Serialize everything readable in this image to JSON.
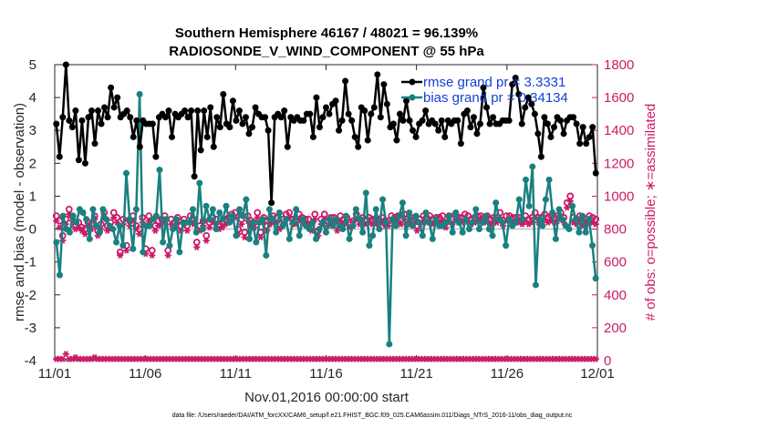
{
  "chart_data": {
    "type": "line",
    "title_line1": "Southern Hemisphere 46167 / 48021 = 96.139%",
    "title_line2": "RADIOSONDE_V_WIND_COMPONENT @ 55 hPa",
    "xlabel": "Nov.01,2016 00:00:00 start",
    "ylabel": "rmse and bias (model - observation)",
    "ylabel_right": "# of obs: o=possible; ∗=assimilated",
    "xlim": [
      0,
      30
    ],
    "ylim": [
      -4,
      5
    ],
    "ylim_right": [
      0,
      1800
    ],
    "x_tick_values": [
      0,
      5,
      10,
      15,
      20,
      25,
      30
    ],
    "x_tick_labels": [
      "11/01",
      "11/06",
      "11/11",
      "11/16",
      "11/21",
      "11/26",
      "12/01"
    ],
    "y_ticks": [
      "5",
      "4",
      "3",
      "2",
      "1",
      "0",
      "-1",
      "-2",
      "-3",
      "-4"
    ],
    "y_ticks_right": [
      "1800",
      "1600",
      "1400",
      "1200",
      "1000",
      "800",
      "600",
      "400",
      "200",
      "0"
    ],
    "zero_line": 0,
    "legend": {
      "rmse_label": "rmse grand pr = 3.3331",
      "bias_label": "bias grand pr = 0.34134",
      "position": "top-right"
    },
    "colors": {
      "rmse": "#000000",
      "bias": "#1a8080",
      "obs": "#cc1a66",
      "legend_text": "#1440d6",
      "zero_line": "#c0c0c0"
    },
    "series": [
      {
        "name": "rmse",
        "values": [
          3.2,
          2.2,
          3.4,
          5.0,
          3.3,
          3.1,
          3.6,
          2.1,
          3.3,
          2.0,
          3.4,
          3.6,
          2.6,
          3.6,
          3.2,
          3.7,
          3.4,
          4.3,
          3.7,
          4.0,
          3.4,
          3.5,
          3.6,
          3.4,
          2.8,
          3.3,
          2.5,
          3.3,
          3.2,
          3.2,
          3.2,
          2.2,
          3.4,
          3.5,
          3.4,
          3.6,
          2.8,
          3.5,
          3.4,
          3.5,
          3.6,
          3.4,
          3.6,
          1.6,
          3.6,
          2.4,
          3.6,
          2.8,
          3.7,
          2.5,
          3.4,
          3.1,
          4.1,
          3.2,
          3.1,
          3.9,
          3.3,
          3.6,
          3.2,
          3.4,
          2.9,
          3.1,
          3.7,
          3.5,
          3.4,
          3.4,
          3.0,
          0.8,
          3.4,
          3.5,
          3.4,
          3.6,
          2.5,
          3.4,
          3.3,
          3.4,
          3.3,
          3.3,
          3.5,
          3.5,
          2.8,
          4.0,
          3.1,
          3.4,
          3.7,
          3.5,
          3.8,
          3.9,
          3.0,
          3.3,
          4.5,
          3.5,
          3.3,
          2.8,
          2.5,
          3.7,
          3.6,
          2.7,
          3.5,
          3.7,
          4.7,
          3.4,
          4.4,
          3.8,
          3.1,
          3.2,
          2.7,
          3.5,
          3.3,
          3.9,
          3.3,
          3.0,
          2.8,
          3.2,
          3.3,
          3.6,
          3.2,
          3.3,
          3.2,
          3.0,
          3.3,
          2.8,
          3.3,
          3.2,
          3.3,
          3.3,
          2.6,
          3.5,
          3.6,
          3.1,
          3.4,
          2.9,
          3.2,
          4.3,
          3.7,
          3.2,
          3.4,
          3.2,
          3.2,
          3.3,
          3.3,
          3.3,
          4.4,
          4.6,
          4.1,
          3.2,
          3.7,
          4.0,
          3.8,
          3.5,
          2.9,
          2.2,
          3.4,
          3.2,
          2.8,
          3.1,
          3.4,
          3.3,
          2.9,
          3.3,
          3.4,
          3.4,
          3.2,
          2.6,
          3.1,
          2.6,
          2.8,
          3.1,
          1.7
        ]
      },
      {
        "name": "bias",
        "values": [
          -0.4,
          -1.4,
          0.4,
          0.0,
          -0.1,
          0.4,
          0.2,
          0.6,
          0.5,
          0.3,
          -0.3,
          0.6,
          0.1,
          -0.1,
          0.6,
          0.3,
          0.1,
          0.0,
          -0.4,
          0.1,
          -0.5,
          1.7,
          0.3,
          -0.6,
          0.6,
          4.1,
          -0.7,
          0.1,
          0.1,
          0.3,
          0.4,
          1.8,
          -0.4,
          0.3,
          -0.5,
          0.0,
          0.3,
          -0.7,
          0.2,
          0.2,
          0.2,
          0.6,
          -0.1,
          1.4,
          0.0,
          0.7,
          0.3,
          0.6,
          0.0,
          0.5,
          0.3,
          0.7,
          0.2,
          0.4,
          -0.2,
          0.6,
          0.4,
          0.9,
          -0.3,
          0.2,
          -0.4,
          0.2,
          0.3,
          -0.8,
          0.6,
          0.3,
          -0.1,
          0.5,
          0.1,
          0.3,
          -0.3,
          0.2,
          0.6,
          -0.2,
          0.3,
          0.1,
          0.0,
          0.2,
          -0.3,
          0.0,
          0.2,
          -0.1,
          0.3,
          0.1,
          0.3,
          0.1,
          0.0,
          0.4,
          -0.3,
          0.1,
          0.6,
          0.3,
          -0.1,
          1.1,
          -0.5,
          -0.2,
          0.6,
          0.0,
          0.9,
          0.2,
          -3.5,
          0.3,
          0.1,
          0.4,
          0.8,
          -0.2,
          0.5,
          0.1,
          0.4,
          0.2,
          -0.2,
          0.5,
          0.2,
          -0.3,
          0.3,
          0.1,
          0.1,
          0.2,
          0.4,
          -0.1,
          0.5,
          0.2,
          -0.1,
          0.3,
          0.0,
          0.2,
          0.6,
          0.0,
          0.2,
          0.4,
          0.0,
          -0.2,
          0.8,
          0.3,
          0.2,
          -0.5,
          0.3,
          0.1,
          0.2,
          0.9,
          0.3,
          1.5,
          0.7,
          1.9,
          -1.7,
          0.3,
          0.1,
          0.9,
          1.5,
          0.5,
          -0.3,
          0.6,
          0.3,
          0.1,
          0.0,
          0.7,
          0.3,
          -0.1,
          0.4,
          -0.1,
          0.3,
          -0.5,
          -1.5
        ]
      },
      {
        "name": "obs_possible",
        "values": [
          880,
          850,
          760,
          860,
          920,
          880,
          820,
          840,
          810,
          800,
          840,
          830,
          880,
          790,
          830,
          900,
          820,
          840,
          900,
          870,
          660,
          860,
          700,
          850,
          880,
          820,
          800,
          870,
          680,
          880,
          670,
          820,
          850,
          860,
          880,
          670,
          860,
          840,
          870,
          820,
          860,
          820,
          880,
          860,
          720,
          820,
          850,
          760,
          840,
          870,
          860,
          830,
          840,
          860,
          870,
          890,
          900,
          800,
          860,
          780,
          880,
          850,
          840,
          900,
          780,
          870,
          820,
          860,
          880,
          870,
          830,
          860,
          890,
          900,
          860,
          860,
          890,
          870,
          860,
          860,
          820,
          890,
          790,
          860,
          890,
          850,
          870,
          870,
          820,
          880,
          860,
          870,
          840,
          850,
          890,
          860,
          870,
          860,
          870,
          860,
          860,
          860,
          870,
          850,
          850,
          880,
          870,
          880,
          860,
          890,
          860,
          870,
          860,
          820,
          860,
          880,
          870,
          880,
          860,
          870,
          870,
          880,
          840,
          880,
          860,
          890,
          870,
          870,
          890,
          880,
          860,
          870,
          880,
          880,
          870,
          880,
          860,
          870,
          870,
          900,
          850,
          880,
          880,
          870,
          870,
          870,
          860,
          880,
          860,
          870,
          900,
          870,
          870,
          890,
          870,
          880,
          870,
          880,
          900,
          870,
          960,
          1000,
          870,
          860,
          880,
          850,
          860,
          880,
          870,
          860
        ]
      },
      {
        "name": "obs_assimilated",
        "values": [
          850,
          810,
          730,
          830,
          890,
          850,
          800,
          810,
          790,
          770,
          820,
          800,
          860,
          760,
          800,
          870,
          790,
          810,
          870,
          840,
          640,
          830,
          670,
          820,
          850,
          800,
          770,
          840,
          650,
          850,
          640,
          790,
          820,
          830,
          850,
          640,
          830,
          810,
          840,
          790,
          830,
          790,
          850,
          830,
          690,
          790,
          820,
          730,
          810,
          840,
          830,
          800,
          810,
          830,
          840,
          860,
          870,
          770,
          830,
          750,
          850,
          820,
          810,
          870,
          750,
          840,
          790,
          830,
          850,
          840,
          800,
          830,
          860,
          870,
          830,
          830,
          860,
          840,
          830,
          830,
          790,
          860,
          760,
          830,
          860,
          820,
          840,
          840,
          790,
          850,
          830,
          840,
          810,
          820,
          860,
          830,
          840,
          830,
          840,
          830,
          830,
          830,
          840,
          820,
          820,
          850,
          840,
          850,
          830,
          860,
          830,
          840,
          830,
          790,
          830,
          850,
          840,
          850,
          830,
          840,
          840,
          850,
          810,
          850,
          830,
          860,
          840,
          840,
          860,
          850,
          830,
          840,
          850,
          850,
          840,
          850,
          830,
          840,
          840,
          870,
          820,
          850,
          850,
          840,
          840,
          840,
          830,
          850,
          830,
          840,
          870,
          840,
          840,
          860,
          840,
          850,
          840,
          850,
          870,
          840,
          930,
          970,
          840,
          830,
          850,
          820,
          830,
          850,
          840,
          830
        ]
      },
      {
        "name": "obs_baseline",
        "values": [
          10,
          10,
          10,
          40,
          10,
          10,
          20,
          10,
          10,
          10,
          10,
          10,
          20,
          10,
          10,
          10,
          10,
          10,
          10,
          10,
          10,
          10,
          10,
          10,
          10,
          10,
          10,
          10,
          10,
          10,
          10,
          10,
          10,
          10,
          10,
          10,
          10,
          10,
          10,
          10,
          10,
          10,
          10,
          10,
          10,
          10,
          10,
          10,
          10,
          10,
          10,
          10,
          10,
          10,
          10,
          10,
          10,
          10,
          10,
          10,
          10,
          10,
          10,
          10,
          10,
          10,
          10,
          10,
          10,
          10,
          10,
          10,
          10,
          10,
          10,
          10,
          10,
          10,
          10,
          10,
          10,
          10,
          10,
          10,
          10,
          10,
          10,
          10,
          10,
          10,
          10,
          10,
          10,
          10,
          10,
          10,
          10,
          10,
          10,
          10,
          10,
          10,
          10,
          10,
          10,
          10,
          10,
          10,
          10,
          10,
          10,
          10,
          10,
          10,
          10,
          10,
          10,
          10,
          10,
          10,
          10,
          10,
          10,
          10,
          10,
          10,
          10,
          10,
          10,
          10,
          10,
          10,
          10,
          10,
          10,
          10,
          10,
          10,
          10,
          10,
          10,
          10,
          10,
          10,
          10,
          10,
          10,
          10,
          10,
          10,
          10,
          10,
          10,
          10,
          10,
          10,
          10,
          10,
          10,
          10,
          10,
          10,
          10,
          10,
          10,
          10,
          10,
          10,
          10,
          10
        ]
      }
    ]
  },
  "footer": {
    "data_file": "data file: /Users/raeder/DAI/ATM_forcXX/CAM6_setup/f.e21.FHIST_BGC.f09_025.CAM6assim.011/Diags_NTrS_2016-11/obs_diag_output.nc"
  }
}
